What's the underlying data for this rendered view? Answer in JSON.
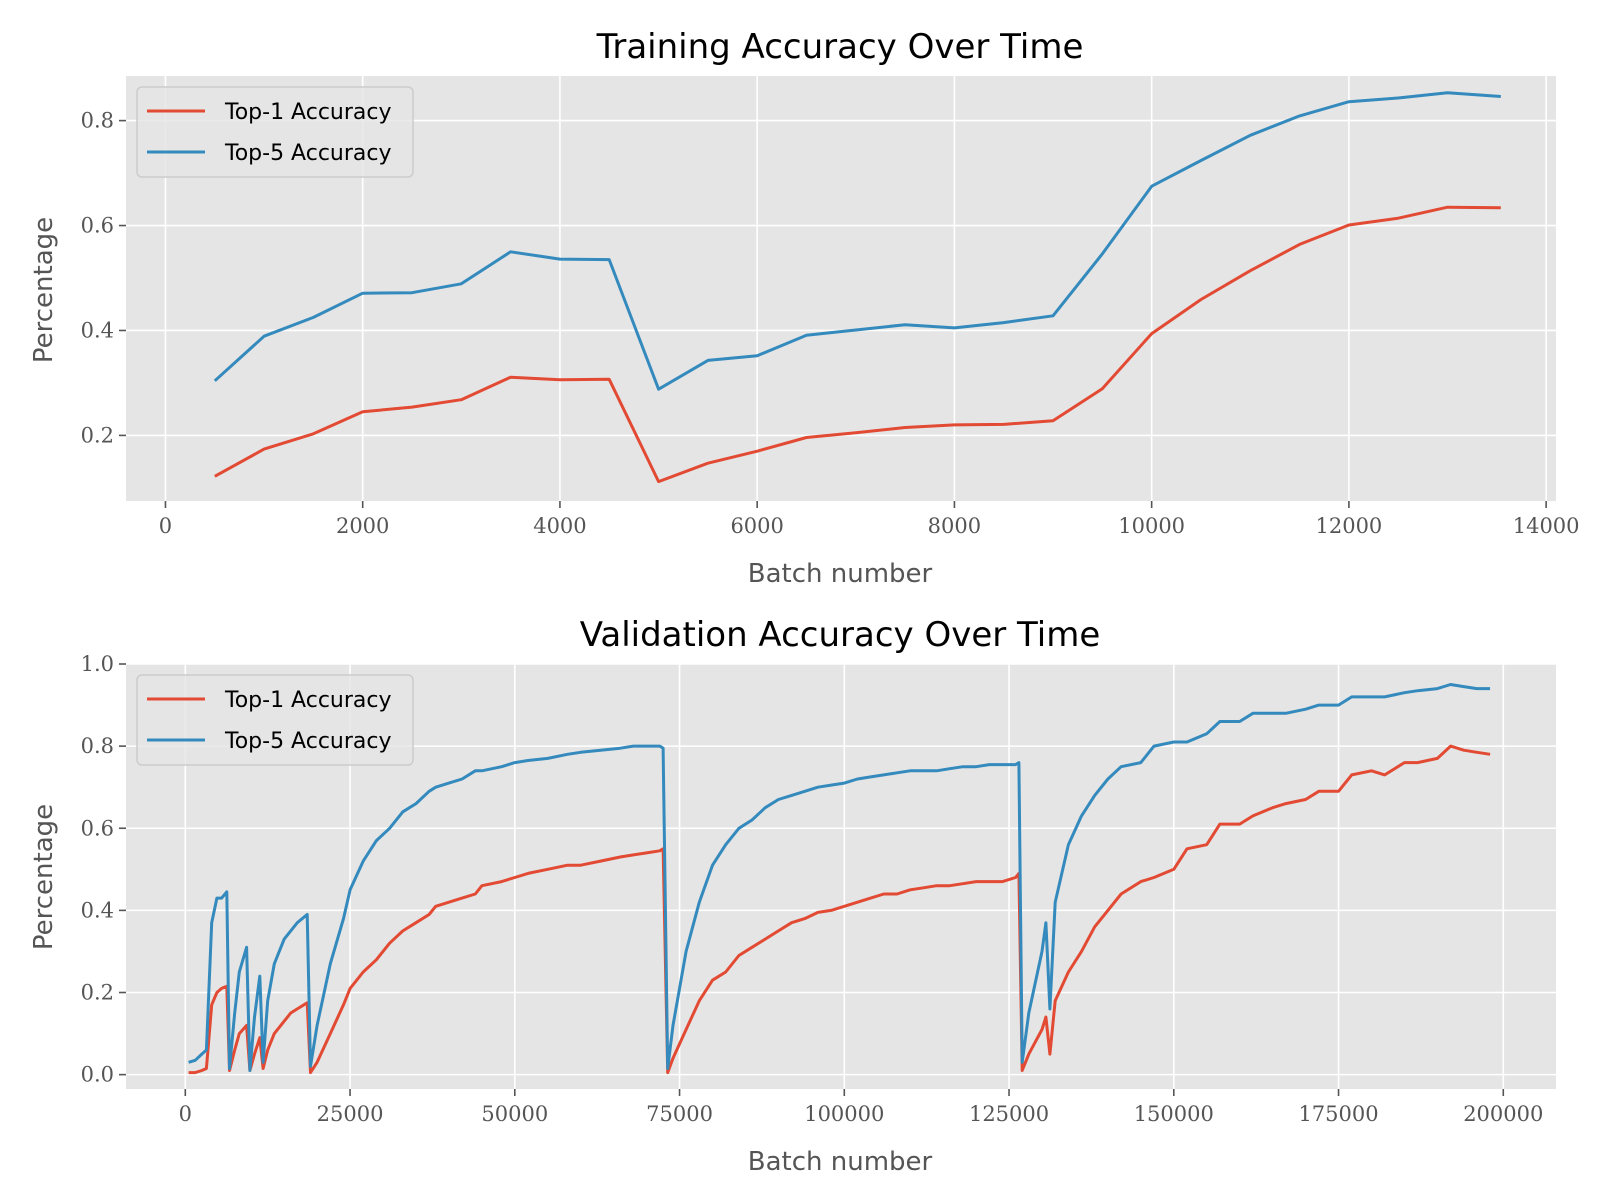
{
  "colors": {
    "top1": "#e24a33",
    "top5": "#348abd",
    "background": "#e5e5e5",
    "grid": "#ffffff"
  },
  "chart_data": [
    {
      "type": "line",
      "title": "Training Accuracy Over Time",
      "xlabel": "Batch number",
      "ylabel": "Percentage",
      "xlim": [
        -400,
        14100
      ],
      "ylim": [
        0.075,
        0.885
      ],
      "xticks": [
        0,
        2000,
        4000,
        6000,
        8000,
        10000,
        12000,
        14000
      ],
      "yticks": [
        0.2,
        0.4,
        0.6,
        0.8
      ],
      "ytick_labels": [
        "0.2",
        "0.4",
        "0.6",
        "0.8"
      ],
      "grid": true,
      "legend_position": "top-left",
      "x": [
        500,
        1000,
        1500,
        2000,
        2500,
        3000,
        3500,
        4000,
        4500,
        5000,
        5500,
        6000,
        6500,
        7000,
        7500,
        8000,
        8500,
        9000,
        9500,
        10000,
        10500,
        11000,
        11500,
        12000,
        12500,
        13000,
        13540
      ],
      "series": [
        {
          "name": "Top-1 Accuracy",
          "color": "#e24a33",
          "values": [
            0.122,
            0.174,
            0.203,
            0.245,
            0.254,
            0.268,
            0.311,
            0.306,
            0.307,
            0.112,
            0.147,
            0.17,
            0.196,
            0.205,
            0.215,
            0.22,
            0.221,
            0.228,
            0.289,
            0.394,
            0.459,
            0.514,
            0.564,
            0.601,
            0.614,
            0.635,
            0.634
          ]
        },
        {
          "name": "Top-5 Accuracy",
          "color": "#348abd",
          "values": [
            0.304,
            0.389,
            0.425,
            0.471,
            0.472,
            0.489,
            0.55,
            0.536,
            0.535,
            0.288,
            0.343,
            0.352,
            0.391,
            0.401,
            0.411,
            0.405,
            0.415,
            0.428,
            0.546,
            0.675,
            0.724,
            0.772,
            0.809,
            0.836,
            0.843,
            0.853,
            0.846
          ]
        }
      ]
    },
    {
      "type": "line",
      "title": "Validation Accuracy Over Time",
      "xlabel": "Batch number",
      "ylabel": "Percentage",
      "xlim": [
        -9000,
        208000
      ],
      "ylim": [
        -0.035,
        1.0
      ],
      "xticks": [
        0,
        25000,
        50000,
        75000,
        100000,
        125000,
        150000,
        175000,
        200000
      ],
      "yticks": [
        0.0,
        0.2,
        0.4,
        0.6,
        0.8,
        1.0
      ],
      "ytick_labels": [
        "0.0",
        "0.2",
        "0.4",
        "0.6",
        "0.8",
        "1.0"
      ],
      "grid": true,
      "legend_position": "top-left",
      "series": [
        {
          "name": "Top-1 Accuracy",
          "color": "#e24a33",
          "points": [
            [
              500,
              0.005
            ],
            [
              1500,
              0.005
            ],
            [
              2500,
              0.01
            ],
            [
              3200,
              0.015
            ],
            [
              4000,
              0.17
            ],
            [
              4800,
              0.2
            ],
            [
              5500,
              0.21
            ],
            [
              6300,
              0.215
            ],
            [
              6700,
              0.01
            ],
            [
              7500,
              0.06
            ],
            [
              8200,
              0.1
            ],
            [
              9300,
              0.12
            ],
            [
              9800,
              0.01
            ],
            [
              10500,
              0.05
            ],
            [
              11300,
              0.09
            ],
            [
              11800,
              0.015
            ],
            [
              12500,
              0.06
            ],
            [
              13500,
              0.1
            ],
            [
              15000,
              0.13
            ],
            [
              16000,
              0.15
            ],
            [
              17000,
              0.16
            ],
            [
              18500,
              0.175
            ],
            [
              19000,
              0.005
            ],
            [
              20000,
              0.03
            ],
            [
              22000,
              0.1
            ],
            [
              24000,
              0.17
            ],
            [
              25000,
              0.21
            ],
            [
              27000,
              0.25
            ],
            [
              29000,
              0.28
            ],
            [
              31000,
              0.32
            ],
            [
              33000,
              0.35
            ],
            [
              35000,
              0.37
            ],
            [
              37000,
              0.39
            ],
            [
              38000,
              0.41
            ],
            [
              40000,
              0.42
            ],
            [
              42000,
              0.43
            ],
            [
              44000,
              0.44
            ],
            [
              45000,
              0.46
            ],
            [
              48000,
              0.47
            ],
            [
              50000,
              0.48
            ],
            [
              52000,
              0.49
            ],
            [
              55000,
              0.5
            ],
            [
              58000,
              0.51
            ],
            [
              60000,
              0.51
            ],
            [
              63000,
              0.52
            ],
            [
              66000,
              0.53
            ],
            [
              68000,
              0.535
            ],
            [
              70000,
              0.54
            ],
            [
              72000,
              0.545
            ],
            [
              72500,
              0.55
            ],
            [
              73200,
              0.005
            ],
            [
              74000,
              0.04
            ],
            [
              76000,
              0.11
            ],
            [
              78000,
              0.18
            ],
            [
              80000,
              0.23
            ],
            [
              82000,
              0.25
            ],
            [
              84000,
              0.29
            ],
            [
              86000,
              0.31
            ],
            [
              88000,
              0.33
            ],
            [
              90000,
              0.35
            ],
            [
              92000,
              0.37
            ],
            [
              94000,
              0.38
            ],
            [
              96000,
              0.395
            ],
            [
              98000,
              0.4
            ],
            [
              100000,
              0.41
            ],
            [
              102000,
              0.42
            ],
            [
              104000,
              0.43
            ],
            [
              106000,
              0.44
            ],
            [
              108000,
              0.44
            ],
            [
              110000,
              0.45
            ],
            [
              112000,
              0.455
            ],
            [
              114000,
              0.46
            ],
            [
              116000,
              0.46
            ],
            [
              118000,
              0.465
            ],
            [
              120000,
              0.47
            ],
            [
              122000,
              0.47
            ],
            [
              124000,
              0.47
            ],
            [
              126000,
              0.48
            ],
            [
              126500,
              0.49
            ],
            [
              127000,
              0.01
            ],
            [
              128000,
              0.05
            ],
            [
              130000,
              0.11
            ],
            [
              130600,
              0.14
            ],
            [
              131200,
              0.05
            ],
            [
              132000,
              0.18
            ],
            [
              134000,
              0.25
            ],
            [
              136000,
              0.3
            ],
            [
              138000,
              0.36
            ],
            [
              140000,
              0.4
            ],
            [
              142000,
              0.44
            ],
            [
              145000,
              0.47
            ],
            [
              147000,
              0.48
            ],
            [
              150000,
              0.5
            ],
            [
              152000,
              0.55
            ],
            [
              155000,
              0.56
            ],
            [
              157000,
              0.61
            ],
            [
              160000,
              0.61
            ],
            [
              162000,
              0.63
            ],
            [
              165000,
              0.65
            ],
            [
              167000,
              0.66
            ],
            [
              170000,
              0.67
            ],
            [
              172000,
              0.69
            ],
            [
              175000,
              0.69
            ],
            [
              177000,
              0.73
            ],
            [
              180000,
              0.74
            ],
            [
              182000,
              0.73
            ],
            [
              185000,
              0.76
            ],
            [
              187000,
              0.76
            ],
            [
              190000,
              0.77
            ],
            [
              192000,
              0.8
            ],
            [
              194000,
              0.79
            ],
            [
              196000,
              0.785
            ],
            [
              198000,
              0.78
            ]
          ]
        },
        {
          "name": "Top-5 Accuracy",
          "color": "#348abd",
          "points": [
            [
              500,
              0.03
            ],
            [
              1500,
              0.035
            ],
            [
              2500,
              0.05
            ],
            [
              3200,
              0.06
            ],
            [
              4000,
              0.37
            ],
            [
              4800,
              0.43
            ],
            [
              5500,
              0.43
            ],
            [
              6300,
              0.445
            ],
            [
              6700,
              0.015
            ],
            [
              7500,
              0.15
            ],
            [
              8200,
              0.25
            ],
            [
              9300,
              0.31
            ],
            [
              9800,
              0.01
            ],
            [
              10500,
              0.14
            ],
            [
              11300,
              0.24
            ],
            [
              11800,
              0.03
            ],
            [
              12500,
              0.18
            ],
            [
              13500,
              0.27
            ],
            [
              15000,
              0.33
            ],
            [
              16000,
              0.35
            ],
            [
              17000,
              0.37
            ],
            [
              18500,
              0.39
            ],
            [
              19000,
              0.02
            ],
            [
              20000,
              0.12
            ],
            [
              22000,
              0.27
            ],
            [
              24000,
              0.38
            ],
            [
              25000,
              0.45
            ],
            [
              27000,
              0.52
            ],
            [
              29000,
              0.57
            ],
            [
              31000,
              0.6
            ],
            [
              33000,
              0.64
            ],
            [
              35000,
              0.66
            ],
            [
              37000,
              0.69
            ],
            [
              38000,
              0.7
            ],
            [
              40000,
              0.71
            ],
            [
              42000,
              0.72
            ],
            [
              44000,
              0.74
            ],
            [
              45000,
              0.74
            ],
            [
              48000,
              0.75
            ],
            [
              50000,
              0.76
            ],
            [
              52000,
              0.765
            ],
            [
              55000,
              0.77
            ],
            [
              58000,
              0.78
            ],
            [
              60000,
              0.785
            ],
            [
              63000,
              0.79
            ],
            [
              66000,
              0.795
            ],
            [
              68000,
              0.8
            ],
            [
              70000,
              0.8
            ],
            [
              72000,
              0.8
            ],
            [
              72500,
              0.795
            ],
            [
              73200,
              0.015
            ],
            [
              74000,
              0.12
            ],
            [
              76000,
              0.3
            ],
            [
              78000,
              0.42
            ],
            [
              80000,
              0.51
            ],
            [
              82000,
              0.56
            ],
            [
              84000,
              0.6
            ],
            [
              86000,
              0.62
            ],
            [
              88000,
              0.65
            ],
            [
              90000,
              0.67
            ],
            [
              92000,
              0.68
            ],
            [
              94000,
              0.69
            ],
            [
              96000,
              0.7
            ],
            [
              98000,
              0.705
            ],
            [
              100000,
              0.71
            ],
            [
              102000,
              0.72
            ],
            [
              104000,
              0.725
            ],
            [
              106000,
              0.73
            ],
            [
              108000,
              0.735
            ],
            [
              110000,
              0.74
            ],
            [
              112000,
              0.74
            ],
            [
              114000,
              0.74
            ],
            [
              116000,
              0.745
            ],
            [
              118000,
              0.75
            ],
            [
              120000,
              0.75
            ],
            [
              122000,
              0.755
            ],
            [
              124000,
              0.755
            ],
            [
              126000,
              0.755
            ],
            [
              126500,
              0.76
            ],
            [
              127000,
              0.03
            ],
            [
              128000,
              0.15
            ],
            [
              130000,
              0.3
            ],
            [
              130600,
              0.37
            ],
            [
              131200,
              0.16
            ],
            [
              132000,
              0.42
            ],
            [
              134000,
              0.56
            ],
            [
              136000,
              0.63
            ],
            [
              138000,
              0.68
            ],
            [
              140000,
              0.72
            ],
            [
              142000,
              0.75
            ],
            [
              145000,
              0.76
            ],
            [
              147000,
              0.8
            ],
            [
              150000,
              0.81
            ],
            [
              152000,
              0.81
            ],
            [
              155000,
              0.83
            ],
            [
              157000,
              0.86
            ],
            [
              160000,
              0.86
            ],
            [
              162000,
              0.88
            ],
            [
              165000,
              0.88
            ],
            [
              167000,
              0.88
            ],
            [
              170000,
              0.89
            ],
            [
              172000,
              0.9
            ],
            [
              175000,
              0.9
            ],
            [
              177000,
              0.92
            ],
            [
              180000,
              0.92
            ],
            [
              182000,
              0.92
            ],
            [
              185000,
              0.93
            ],
            [
              187000,
              0.935
            ],
            [
              190000,
              0.94
            ],
            [
              192000,
              0.95
            ],
            [
              194000,
              0.945
            ],
            [
              196000,
              0.94
            ],
            [
              198000,
              0.94
            ]
          ]
        }
      ]
    }
  ]
}
